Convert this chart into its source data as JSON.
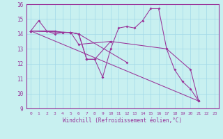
{
  "xlabel": "Windchill (Refroidissement éolien,°C)",
  "bg_color": "#c8f0f0",
  "line_color": "#993399",
  "grid_color": "#a0d8e8",
  "xlim": [
    -0.5,
    23.5
  ],
  "ylim": [
    9,
    16
  ],
  "xticks": [
    0,
    1,
    2,
    3,
    4,
    5,
    6,
    7,
    8,
    9,
    10,
    11,
    12,
    13,
    14,
    15,
    16,
    17,
    18,
    19,
    20,
    21,
    22,
    23
  ],
  "yticks": [
    9,
    10,
    11,
    12,
    13,
    14,
    15,
    16
  ],
  "line1_x": [
    0,
    1,
    2,
    3,
    4,
    5,
    6,
    7,
    8,
    9,
    10,
    11,
    12,
    13,
    14,
    15,
    16,
    17,
    18,
    19,
    20,
    21
  ],
  "line1_y": [
    14.2,
    14.9,
    14.2,
    14.0,
    14.1,
    14.1,
    14.0,
    12.3,
    12.3,
    11.1,
    13.0,
    14.4,
    14.5,
    14.4,
    14.9,
    15.7,
    15.7,
    13.0,
    11.6,
    10.8,
    10.3,
    9.5
  ],
  "line2_x": [
    0,
    5,
    6,
    10,
    17,
    20,
    21
  ],
  "line2_y": [
    14.2,
    14.1,
    13.3,
    13.5,
    13.0,
    11.6,
    9.5
  ],
  "line3_x": [
    0,
    3,
    4,
    5,
    6,
    7,
    8,
    10
  ],
  "line3_y": [
    14.2,
    14.2,
    14.1,
    14.1,
    14.0,
    12.3,
    12.3,
    13.5
  ],
  "line4_x": [
    0,
    21
  ],
  "line4_y": [
    14.2,
    9.5
  ],
  "line5_x": [
    0,
    5,
    6,
    12
  ],
  "line5_y": [
    14.2,
    14.1,
    14.0,
    12.1
  ]
}
